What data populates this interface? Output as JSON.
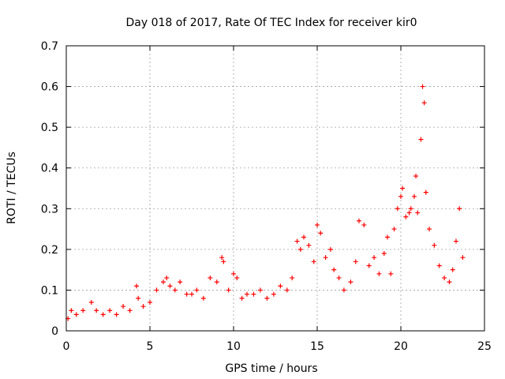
{
  "chart_data": {
    "type": "scatter",
    "title": "Day 018 of 2017, Rate Of TEC Index for receiver kir0",
    "xlabel": "GPS time / hours",
    "ylabel": "ROTI / TECUs",
    "xlim": [
      0,
      25
    ],
    "ylim": [
      0,
      0.7
    ],
    "xticks": [
      0,
      5,
      10,
      15,
      20,
      25
    ],
    "xtick_labels": [
      "0",
      "5",
      "10",
      "15",
      "20",
      "25"
    ],
    "yticks": [
      0,
      0.1,
      0.2,
      0.3,
      0.4,
      0.5,
      0.6,
      0.7
    ],
    "ytick_labels": [
      "0",
      "0.1",
      "0.2",
      "0.3",
      "0.4",
      "0.5",
      "0.6",
      "0.7"
    ],
    "grid": true,
    "marker": "+",
    "series": [
      {
        "name": "ROTI",
        "color": "#ff0000",
        "x": [
          0.1,
          0.3,
          0.6,
          1.0,
          1.5,
          1.8,
          2.2,
          2.6,
          3.0,
          3.4,
          3.8,
          4.2,
          4.3,
          4.6,
          5.0,
          5.4,
          5.8,
          6.0,
          6.2,
          6.5,
          6.8,
          7.2,
          7.5,
          7.8,
          8.2,
          8.6,
          9.0,
          9.3,
          9.4,
          9.7,
          10.0,
          10.2,
          10.5,
          10.8,
          11.2,
          11.6,
          12.0,
          12.4,
          12.8,
          13.2,
          13.5,
          13.8,
          14.0,
          14.2,
          14.5,
          14.8,
          15.0,
          15.2,
          15.5,
          15.8,
          16.0,
          16.3,
          16.6,
          17.0,
          17.3,
          17.5,
          17.8,
          18.1,
          18.4,
          18.7,
          19.0,
          19.2,
          19.4,
          19.6,
          19.8,
          20.0,
          20.1,
          20.3,
          20.5,
          20.6,
          20.8,
          20.9,
          21.0,
          21.2,
          21.3,
          21.4,
          21.5,
          21.7,
          22.0,
          22.3,
          22.6,
          22.9,
          23.1,
          23.3,
          23.5,
          23.7
        ],
        "y": [
          0.03,
          0.05,
          0.04,
          0.05,
          0.07,
          0.05,
          0.04,
          0.05,
          0.04,
          0.06,
          0.05,
          0.11,
          0.08,
          0.06,
          0.07,
          0.1,
          0.12,
          0.13,
          0.11,
          0.1,
          0.12,
          0.09,
          0.09,
          0.1,
          0.08,
          0.13,
          0.12,
          0.18,
          0.17,
          0.1,
          0.14,
          0.13,
          0.08,
          0.09,
          0.09,
          0.1,
          0.08,
          0.09,
          0.11,
          0.1,
          0.13,
          0.22,
          0.2,
          0.23,
          0.21,
          0.17,
          0.26,
          0.24,
          0.18,
          0.2,
          0.15,
          0.13,
          0.1,
          0.12,
          0.17,
          0.27,
          0.26,
          0.16,
          0.18,
          0.14,
          0.19,
          0.23,
          0.14,
          0.25,
          0.3,
          0.33,
          0.35,
          0.28,
          0.29,
          0.3,
          0.33,
          0.38,
          0.29,
          0.47,
          0.6,
          0.56,
          0.34,
          0.25,
          0.21,
          0.16,
          0.13,
          0.12,
          0.15,
          0.22,
          0.3,
          0.18
        ]
      }
    ]
  }
}
